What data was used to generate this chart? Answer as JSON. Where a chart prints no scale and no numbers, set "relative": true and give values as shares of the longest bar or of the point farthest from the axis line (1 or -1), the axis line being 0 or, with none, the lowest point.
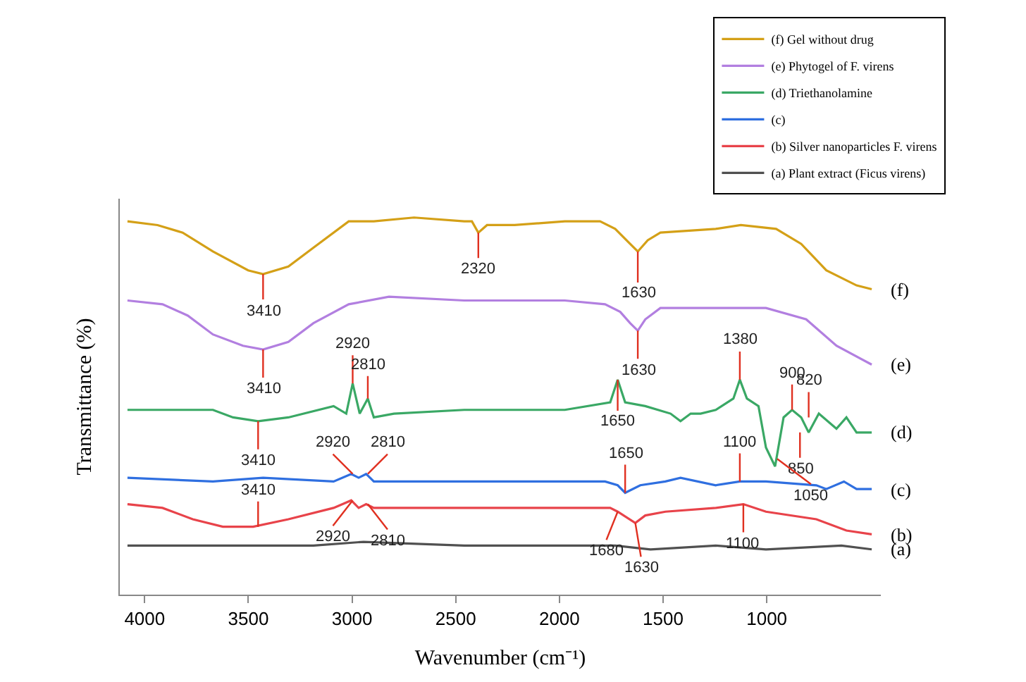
{
  "chart_data": {
    "type": "line",
    "relative": true,
    "xlabel": "Wavenumber (cm⁻¹)",
    "ylabel": "Transmittance (%)",
    "xlim": [
      4120,
      450
    ],
    "xticks": [
      4000,
      3500,
      3000,
      2500,
      2000,
      1500,
      1000
    ],
    "legend": "top right",
    "marker": "none",
    "line_style": "solid",
    "series": [
      {
        "name": "(f) Gel without drug",
        "color": "#d4a017",
        "x": [
          4083,
          3938,
          3817,
          3671,
          3501,
          3429,
          3307,
          3186,
          3016,
          2895,
          2701,
          2459,
          2422,
          2391,
          2349,
          2216,
          1974,
          1804,
          1731,
          1659,
          1622,
          1574,
          1513,
          1246,
          1125,
          955,
          834,
          713,
          567,
          494
        ],
        "values": [
          0.99,
          0.98,
          0.96,
          0.91,
          0.86,
          0.85,
          0.87,
          0.92,
          0.99,
          0.99,
          1.0,
          0.99,
          0.99,
          0.96,
          0.98,
          0.98,
          0.99,
          0.99,
          0.97,
          0.93,
          0.91,
          0.94,
          0.96,
          0.97,
          0.98,
          0.97,
          0.93,
          0.86,
          0.82,
          0.81
        ]
      },
      {
        "name": "(e) Phytogel of F. virens",
        "color": "#b27fe0",
        "x": [
          4083,
          3914,
          3792,
          3671,
          3526,
          3429,
          3307,
          3186,
          3016,
          2822,
          2459,
          1974,
          1780,
          1707,
          1659,
          1622,
          1586,
          1513,
          1246,
          1004,
          810,
          664,
          494
        ],
        "values": [
          0.78,
          0.77,
          0.74,
          0.69,
          0.66,
          0.65,
          0.67,
          0.72,
          0.77,
          0.79,
          0.78,
          0.78,
          0.77,
          0.75,
          0.72,
          0.7,
          0.73,
          0.76,
          0.76,
          0.76,
          0.73,
          0.66,
          0.61
        ]
      },
      {
        "name": "(d) Triethanolamine",
        "color": "#3aa865",
        "x": [
          4083,
          3671,
          3574,
          3453,
          3307,
          3089,
          3028,
          2997,
          2963,
          2924,
          2895,
          2798,
          2459,
          1974,
          1755,
          1719,
          1683,
          1586,
          1464,
          1416,
          1367,
          1319,
          1246,
          1161,
          1130,
          1096,
          1040,
          1004,
          960,
          919,
          878,
          834,
          798,
          749,
          664,
          616,
          567,
          494
        ],
        "values": [
          0.49,
          0.49,
          0.47,
          0.46,
          0.47,
          0.5,
          0.48,
          0.56,
          0.48,
          0.52,
          0.47,
          0.48,
          0.49,
          0.49,
          0.51,
          0.57,
          0.51,
          0.5,
          0.48,
          0.46,
          0.48,
          0.48,
          0.49,
          0.52,
          0.57,
          0.52,
          0.5,
          0.39,
          0.34,
          0.47,
          0.49,
          0.47,
          0.43,
          0.48,
          0.44,
          0.47,
          0.43,
          0.43
        ]
      },
      {
        "name": "(c)",
        "color": "#2f6fe0",
        "x": [
          4083,
          3671,
          3429,
          3089,
          3004,
          2968,
          2932,
          2895,
          2459,
          1780,
          1719,
          1683,
          1610,
          1489,
          1416,
          1246,
          1130,
          1004,
          761,
          713,
          628,
          567,
          494
        ],
        "values": [
          0.31,
          0.3,
          0.31,
          0.3,
          0.32,
          0.31,
          0.32,
          0.3,
          0.3,
          0.3,
          0.29,
          0.27,
          0.29,
          0.3,
          0.31,
          0.29,
          0.3,
          0.3,
          0.29,
          0.28,
          0.3,
          0.28,
          0.28
        ]
      },
      {
        "name": "(b) Silver nanoparticles F. virens",
        "color": "#e8434a",
        "x": [
          4083,
          3914,
          3768,
          3623,
          3477,
          3307,
          3089,
          3004,
          2968,
          2932,
          2895,
          2459,
          1755,
          1719,
          1634,
          1586,
          1489,
          1246,
          1113,
          1004,
          761,
          616,
          494
        ],
        "values": [
          0.24,
          0.23,
          0.2,
          0.18,
          0.18,
          0.2,
          0.23,
          0.25,
          0.23,
          0.24,
          0.23,
          0.23,
          0.23,
          0.22,
          0.19,
          0.21,
          0.22,
          0.23,
          0.24,
          0.22,
          0.2,
          0.17,
          0.16
        ]
      },
      {
        "name": "(a) Plant extract (Ficus virens)",
        "color": "#505050",
        "x": [
          4083,
          3671,
          3186,
          2944,
          2459,
          1974,
          1731,
          1561,
          1246,
          1004,
          640,
          494
        ],
        "values": [
          0.13,
          0.13,
          0.13,
          0.14,
          0.13,
          0.13,
          0.13,
          0.12,
          0.13,
          0.12,
          0.13,
          0.12
        ]
      }
    ],
    "annotations": [
      "(f)",
      "(e)",
      "(d)",
      "(c)",
      "(b)",
      "(a)",
      {
        "text": "3410",
        "x": 3429,
        "y": 0.85
      },
      {
        "text": "2320",
        "x": 2391,
        "y": 0.96
      },
      {
        "text": "1630",
        "x": 1622,
        "y": 0.91
      },
      {
        "text": "3410",
        "x": 3429,
        "y": 0.65
      },
      {
        "text": "1630",
        "x": 1622,
        "y": 0.7
      },
      {
        "text": "3410",
        "x": 3453,
        "y": 0.46
      },
      {
        "text": "2920",
        "x": 2997,
        "y": 0.56
      },
      {
        "text": "2810",
        "x": 2924,
        "y": 0.52
      },
      {
        "text": "1650",
        "x": 1719,
        "y": 0.57
      },
      {
        "text": "1380",
        "x": 1130,
        "y": 0.57
      },
      {
        "text": "900",
        "x": 878,
        "y": 0.49
      },
      {
        "text": "820",
        "x": 798,
        "y": 0.47
      },
      {
        "text": "850",
        "x": 840,
        "y": 0.43
      },
      {
        "text": "1050",
        "x": 950,
        "y": 0.36
      },
      {
        "text": "2920",
        "x": 2997,
        "y": 0.32
      },
      {
        "text": "2810",
        "x": 2924,
        "y": 0.32
      },
      {
        "text": "1650",
        "x": 1683,
        "y": 0.27
      },
      {
        "text": "1100",
        "x": 1130,
        "y": 0.3
      },
      {
        "text": "3410",
        "x": 3453,
        "y": 0.18
      },
      {
        "text": "2920",
        "x": 2997,
        "y": 0.25
      },
      {
        "text": "2810",
        "x": 2924,
        "y": 0.24
      },
      {
        "text": "1680",
        "x": 1719,
        "y": 0.22
      },
      {
        "text": "1630",
        "x": 1634,
        "y": 0.19
      },
      {
        "text": "1100",
        "x": 1113,
        "y": 0.24
      }
    ]
  }
}
